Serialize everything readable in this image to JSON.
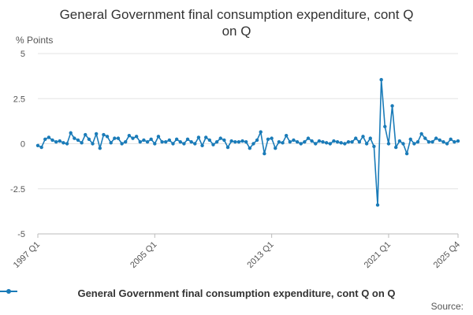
{
  "chart_data": {
    "type": "line",
    "title_line1": "General Government final consumption expenditure, cont Q",
    "title_line2": "on Q",
    "ylabel": "% Points",
    "ylim": [
      -5,
      5
    ],
    "yticks": [
      "5",
      "2.5",
      "0",
      "-2.5",
      "-5"
    ],
    "ytick_values": [
      5,
      2.5,
      0,
      -2.5,
      -5
    ],
    "xtick_labels": [
      "1997 Q1",
      "2005 Q1",
      "2013 Q1",
      "2021 Q1",
      "2025 Q4"
    ],
    "xtick_indices": [
      0,
      32,
      64,
      96,
      115
    ],
    "x_start": "1997 Q1",
    "x_end": "2025 Q4",
    "color": "#1a7bb8",
    "series": [
      {
        "name": "General Government final consumption expenditure, cont Q on Q",
        "values": [
          -0.1,
          -0.2,
          0.25,
          0.35,
          0.2,
          0.1,
          0.15,
          0.05,
          0.0,
          0.6,
          0.3,
          0.2,
          0.05,
          0.5,
          0.25,
          0.0,
          0.55,
          -0.25,
          0.5,
          0.4,
          0.05,
          0.3,
          0.3,
          0.0,
          0.1,
          0.45,
          0.3,
          0.4,
          0.1,
          0.2,
          0.1,
          0.25,
          0.0,
          0.4,
          0.1,
          0.1,
          0.2,
          0.0,
          0.25,
          0.1,
          0.0,
          0.25,
          0.1,
          0.0,
          0.35,
          -0.1,
          0.35,
          0.2,
          -0.05,
          0.1,
          0.3,
          0.2,
          -0.2,
          0.15,
          0.1,
          0.1,
          0.15,
          0.1,
          -0.25,
          0.0,
          0.2,
          0.65,
          -0.55,
          0.25,
          0.3,
          -0.25,
          0.1,
          0.05,
          0.45,
          0.1,
          0.2,
          0.1,
          0.0,
          0.1,
          0.3,
          0.15,
          0.0,
          0.15,
          0.1,
          0.05,
          0.0,
          0.15,
          0.1,
          0.05,
          0.0,
          0.1,
          0.1,
          0.3,
          0.1,
          0.4,
          0.0,
          0.3,
          -0.15,
          -3.4,
          3.55,
          0.95,
          0.0,
          2.1,
          -0.2,
          0.15,
          0.0,
          -0.55,
          0.25,
          0.0,
          0.1,
          0.55,
          0.3,
          0.1,
          0.1,
          0.3,
          0.2,
          0.1,
          0.0,
          0.25,
          0.1,
          0.15
        ]
      }
    ],
    "legend": "General Government final consumption expenditure, cont Q on Q",
    "source_label": "Source:"
  }
}
